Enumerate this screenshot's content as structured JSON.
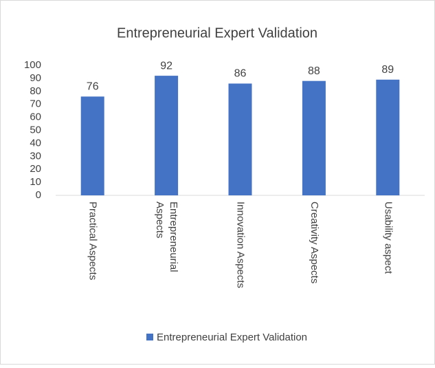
{
  "chart_data": {
    "type": "bar",
    "title": "Entrepreneurial Expert Validation",
    "categories": [
      "Practical Aspects",
      "Entrepreneurial Aspects",
      "Innovation Aspects",
      "Creativity Aspects",
      "Usability aspect"
    ],
    "series": [
      {
        "name": "Entrepreneurial Expert Validation",
        "color": "#4472c4",
        "values": [
          76,
          92,
          86,
          88,
          89
        ]
      }
    ],
    "ylim": [
      0,
      100
    ],
    "yticks": [
      0,
      10,
      20,
      30,
      40,
      50,
      60,
      70,
      80,
      90,
      100
    ],
    "legend": "bottom"
  }
}
